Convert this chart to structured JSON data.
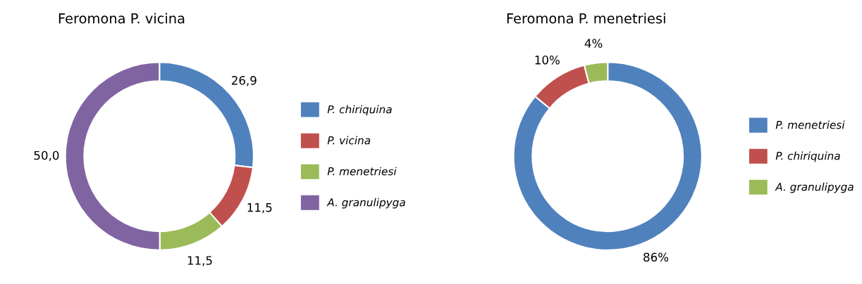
{
  "chart_data": [
    {
      "type": "donut",
      "title": "Feromona P. vicina",
      "categories": [
        "P. chiriquina",
        "P. vicina",
        "P. menetriesi",
        "A. granulipyga"
      ],
      "values": [
        26.9,
        11.5,
        11.5,
        50.0
      ],
      "value_labels": [
        "26,9",
        "11,5",
        "11,5",
        "50,0"
      ],
      "colors": [
        "#4f81bd",
        "#c0504d",
        "#9bbb59",
        "#8064a2"
      ],
      "legend": "right"
    },
    {
      "type": "donut",
      "title": "Feromona P. menetriesi",
      "categories": [
        "P. menetriesi",
        "P. chiriquina",
        "A. granulipyga"
      ],
      "values": [
        86,
        10,
        4
      ],
      "value_labels": [
        "86%",
        "10%",
        "4%"
      ],
      "colors": [
        "#4f81bd",
        "#c0504d",
        "#9bbb59"
      ],
      "legend": "right"
    }
  ]
}
